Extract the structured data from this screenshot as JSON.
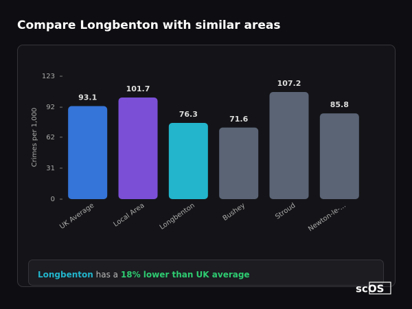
{
  "chart_data": {
    "type": "bar",
    "title": "Compare Longbenton with similar areas",
    "y_label": "Crimes per 1,000",
    "categories": [
      "UK Average",
      "Local Area",
      "Longbenton",
      "Bushey",
      "Stroud",
      "Newton-le-..."
    ],
    "values": [
      93.1,
      101.7,
      76.3,
      71.6,
      107.2,
      85.8
    ],
    "colors": [
      "#3574d8",
      "#7b4fd6",
      "#22b5cc",
      "#5a6475",
      "#5a6475",
      "#5a6475"
    ],
    "ylim": [
      0,
      123
    ],
    "yticks": [
      0,
      31,
      62,
      92,
      123
    ]
  },
  "summary": {
    "area": "Longbenton",
    "text": "has a",
    "highlight": "18% lower than UK average"
  },
  "logo": "scOS"
}
